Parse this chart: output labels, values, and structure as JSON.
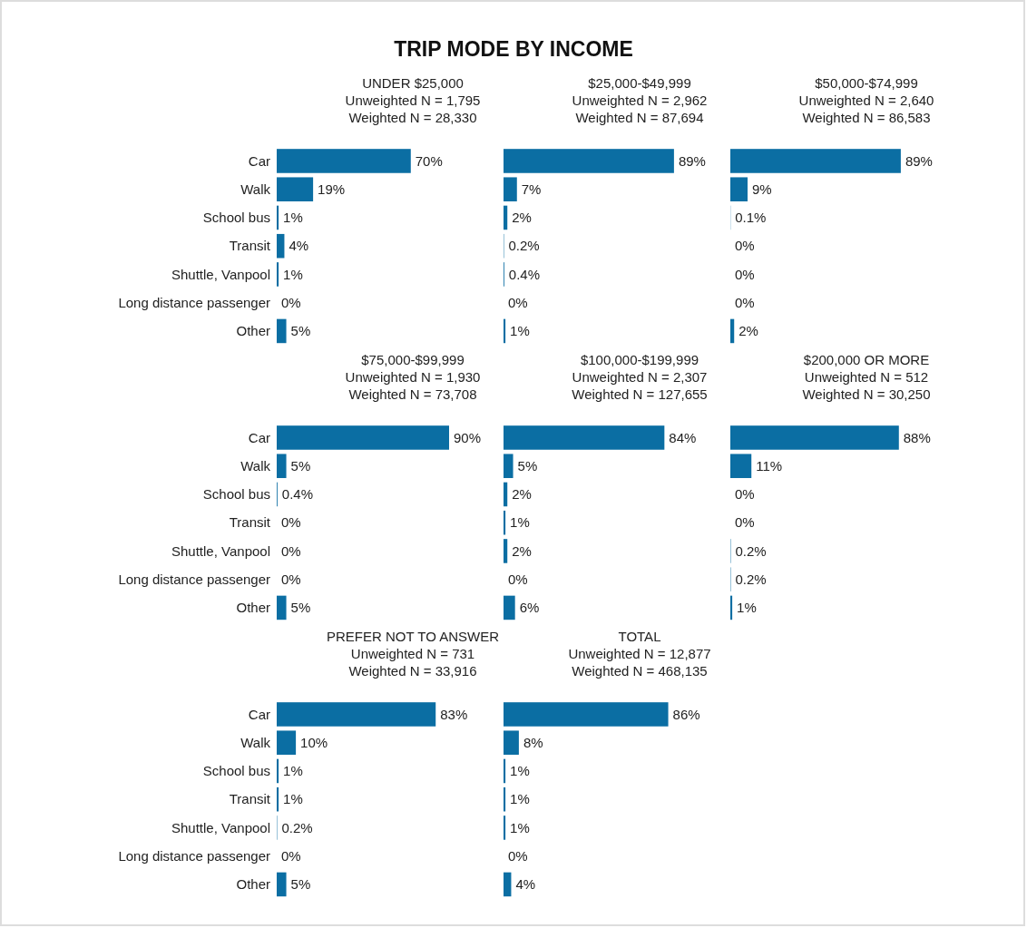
{
  "chart_data": [
    {
      "type": "bar",
      "orientation": "horizontal",
      "annotations": [
        "TRIP MODE BY INCOME"
      ],
      "title": "UNDER $25,000",
      "subtitle": "Unweighted N = 1,795\nWeighted N = 28,330",
      "categories": [
        "Car",
        "Walk",
        "School bus",
        "Transit",
        "Shuttle, Vanpool",
        "Long distance passenger",
        "Other"
      ],
      "values": [
        70,
        19,
        1,
        4,
        1,
        0,
        5
      ],
      "value_labels": [
        "70%",
        "19%",
        "1%",
        "4%",
        "1%",
        "0%",
        "5%"
      ],
      "color": "#0b6ea3",
      "tick_labels": "y"
    },
    {
      "type": "bar",
      "orientation": "horizontal",
      "title": "$25,000-$49,999",
      "subtitle": "Unweighted N = 2,962\nWeighted N = 87,694",
      "categories": [
        "Car",
        "Walk",
        "School bus",
        "Transit",
        "Shuttle, Vanpool",
        "Long distance passenger",
        "Other"
      ],
      "values": [
        89,
        7,
        2,
        0.2,
        0.4,
        0,
        1
      ],
      "value_labels": [
        "89%",
        "7%",
        "2%",
        "0.2%",
        "0.4%",
        "0%",
        "1%"
      ],
      "color": "#0b6ea3",
      "tick_labels": false
    },
    {
      "type": "bar",
      "orientation": "horizontal",
      "title": "$50,000-$74,999",
      "subtitle": "Unweighted N = 2,640\nWeighted N = 86,583",
      "categories": [
        "Car",
        "Walk",
        "School bus",
        "Transit",
        "Shuttle, Vanpool",
        "Long distance passenger",
        "Other"
      ],
      "values": [
        89,
        9,
        0.1,
        0,
        0,
        0,
        2
      ],
      "value_labels": [
        "89%",
        "9%",
        "0.1%",
        "0%",
        "0%",
        "0%",
        "2%"
      ],
      "color": "#0b6ea3",
      "tick_labels": false
    },
    {
      "type": "bar",
      "orientation": "horizontal",
      "title": "$75,000-$99,999",
      "subtitle": "Unweighted N = 1,930\nWeighted N = 73,708",
      "categories": [
        "Car",
        "Walk",
        "School bus",
        "Transit",
        "Shuttle, Vanpool",
        "Long distance passenger",
        "Other"
      ],
      "values": [
        90,
        5,
        0.4,
        0,
        0,
        0,
        5
      ],
      "value_labels": [
        "90%",
        "5%",
        "0.4%",
        "0%",
        "0%",
        "0%",
        "5%"
      ],
      "color": "#0b6ea3",
      "tick_labels": "y"
    },
    {
      "type": "bar",
      "orientation": "horizontal",
      "title": "$100,000-$199,999",
      "subtitle": "Unweighted N = 2,307\nWeighted N = 127,655",
      "categories": [
        "Car",
        "Walk",
        "School bus",
        "Transit",
        "Shuttle, Vanpool",
        "Long distance passenger",
        "Other"
      ],
      "values": [
        84,
        5,
        2,
        1,
        2,
        0,
        6
      ],
      "value_labels": [
        "84%",
        "5%",
        "2%",
        "1%",
        "2%",
        "0%",
        "6%"
      ],
      "color": "#0b6ea3",
      "tick_labels": false
    },
    {
      "type": "bar",
      "orientation": "horizontal",
      "title": "$200,000 OR MORE",
      "subtitle": "Unweighted N = 512\nWeighted N = 30,250",
      "categories": [
        "Car",
        "Walk",
        "School bus",
        "Transit",
        "Shuttle, Vanpool",
        "Long distance passenger",
        "Other"
      ],
      "values": [
        88,
        11,
        0,
        0,
        0.2,
        0.2,
        1
      ],
      "value_labels": [
        "88%",
        "11%",
        "0%",
        "0%",
        "0.2%",
        "0.2%",
        "1%"
      ],
      "color": "#0b6ea3",
      "tick_labels": false
    },
    {
      "type": "bar",
      "orientation": "horizontal",
      "title": "PREFER NOT TO ANSWER",
      "subtitle": "Unweighted N = 731\nWeighted N = 33,916",
      "categories": [
        "Car",
        "Walk",
        "School bus",
        "Transit",
        "Shuttle, Vanpool",
        "Long distance passenger",
        "Other"
      ],
      "values": [
        83,
        10,
        1,
        1,
        0.2,
        0,
        5
      ],
      "value_labels": [
        "83%",
        "10%",
        "1%",
        "1%",
        "0.2%",
        "0%",
        "5%"
      ],
      "color": "#0b6ea3",
      "tick_labels": "y"
    },
    {
      "type": "bar",
      "orientation": "horizontal",
      "title": "TOTAL",
      "subtitle": "Unweighted N = 12,877\nWeighted N = 468,135",
      "categories": [
        "Car",
        "Walk",
        "School bus",
        "Transit",
        "Shuttle, Vanpool",
        "Long distance passenger",
        "Other"
      ],
      "values": [
        86,
        8,
        1,
        1,
        1,
        0,
        4
      ],
      "value_labels": [
        "86%",
        "8%",
        "1%",
        "1%",
        "1%",
        "0%",
        "4%"
      ],
      "color": "#0b6ea3",
      "tick_labels": false
    }
  ]
}
